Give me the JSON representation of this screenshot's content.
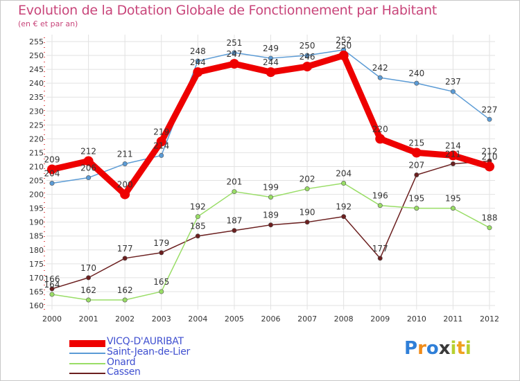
{
  "chart_data": {
    "type": "line",
    "title": "Evolution de la Dotation Globale de Fonctionnement par Habitant",
    "subtitle": "(en € et par an)",
    "categories": [
      "2000",
      "2001",
      "2002",
      "2003",
      "2004",
      "2005",
      "2006",
      "2007",
      "2008",
      "2009",
      "2010",
      "2011",
      "2012"
    ],
    "ylim": [
      160,
      255
    ],
    "yticks": [
      160,
      165,
      170,
      175,
      180,
      185,
      190,
      195,
      200,
      205,
      210,
      215,
      220,
      225,
      230,
      235,
      240,
      245,
      250,
      255
    ],
    "grid": true,
    "legend_position": "bottom-left",
    "series": [
      {
        "name": "VICQ-D'AURIBAT",
        "color": "#ee0000",
        "values": [
          209,
          212,
          200,
          219,
          244,
          247,
          244,
          246,
          250,
          220,
          215,
          214,
          210
        ]
      },
      {
        "name": "Saint-Jean-de-Lier",
        "color": "#5b9bd5",
        "values": [
          204,
          206,
          211,
          214,
          248,
          251,
          249,
          250,
          252,
          242,
          240,
          237,
          227
        ]
      },
      {
        "name": "Onard",
        "color": "#99dd66",
        "values": [
          164,
          162,
          162,
          165,
          192,
          201,
          199,
          202,
          204,
          196,
          195,
          195,
          188
        ]
      },
      {
        "name": "Cassen",
        "color": "#6b1f1f",
        "values": [
          166,
          170,
          177,
          179,
          185,
          187,
          189,
          190,
          192,
          177,
          207,
          211,
          212
        ]
      }
    ]
  },
  "legend": {
    "items": [
      {
        "label": "VICQ-D'AURIBAT",
        "color": "#ee0000"
      },
      {
        "label": "Saint-Jean-de-Lier",
        "color": "#5b9bd5"
      },
      {
        "label": "Onard",
        "color": "#99dd66"
      },
      {
        "label": "Cassen",
        "color": "#6b1f1f"
      }
    ]
  },
  "logo": {
    "letters": [
      "P",
      "r",
      "o",
      "x",
      "i",
      "t",
      "i"
    ],
    "colors": [
      "#2f7fd8",
      "#f08c1a",
      "#2f7fd8",
      "#3a3a3a",
      "#b7d030",
      "#f0a020",
      "#b7d030"
    ]
  }
}
